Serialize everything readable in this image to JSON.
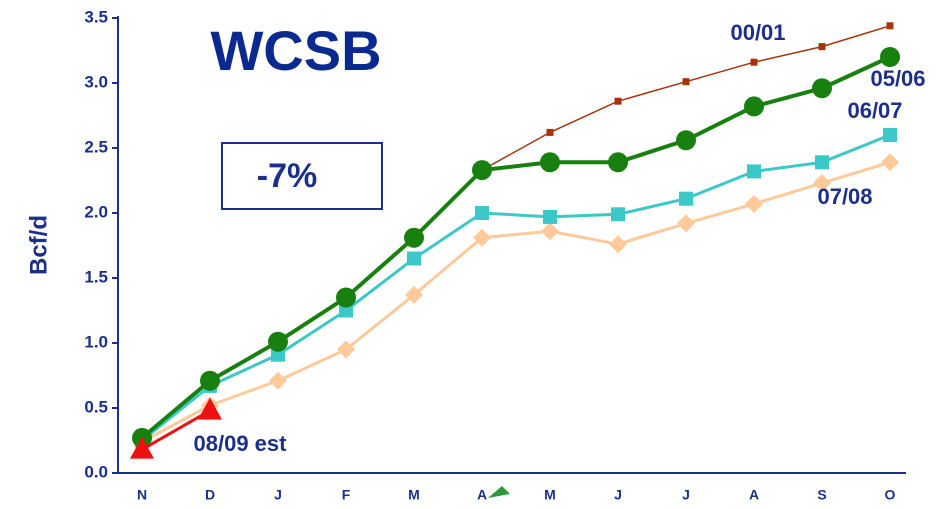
{
  "chart_data": {
    "type": "line",
    "title": "WCSB",
    "annotation": "-7%",
    "y_label": "Bcf/d",
    "categories": [
      "N",
      "D",
      "J",
      "F",
      "M",
      "A",
      "M",
      "J",
      "J",
      "A",
      "S",
      "O"
    ],
    "series": [
      {
        "name": "00/01",
        "color": "#a8320c",
        "marker": "square-small",
        "values": [
          null,
          null,
          null,
          null,
          null,
          2.33,
          2.62,
          2.86,
          3.01,
          3.16,
          3.28,
          3.44
        ]
      },
      {
        "name": "05/06",
        "color": "#17800f",
        "marker": "circle",
        "values": [
          0.27,
          0.71,
          1.01,
          1.35,
          1.81,
          2.33,
          2.39,
          2.39,
          2.56,
          2.82,
          2.96,
          3.2
        ]
      },
      {
        "name": "06/07",
        "color": "#3cc8c8",
        "marker": "square",
        "values": [
          0.25,
          0.67,
          0.91,
          1.25,
          1.65,
          2.0,
          1.97,
          1.99,
          2.11,
          2.32,
          2.39,
          2.6
        ]
      },
      {
        "name": "07/08",
        "color": "#ffc99a",
        "marker": "diamond",
        "values": [
          0.24,
          0.52,
          0.71,
          0.95,
          1.37,
          1.81,
          1.86,
          1.76,
          1.92,
          2.07,
          2.23,
          2.39
        ]
      },
      {
        "name": "08/09 est",
        "color": "#ee1111",
        "marker": "triangle",
        "values": [
          0.18,
          0.48,
          null,
          null,
          null,
          null,
          null,
          null,
          null,
          null,
          null,
          null
        ]
      }
    ],
    "ylim": [
      0,
      3.5
    ],
    "yticks": [
      {
        "value": 0,
        "label": "0.0"
      },
      0.5,
      {
        "value": 1,
        "label": "1.0"
      },
      1.5,
      {
        "value": 2,
        "label": "2.0"
      },
      2.5,
      {
        "value": 3,
        "label": "3.0"
      },
      3.5
    ]
  }
}
